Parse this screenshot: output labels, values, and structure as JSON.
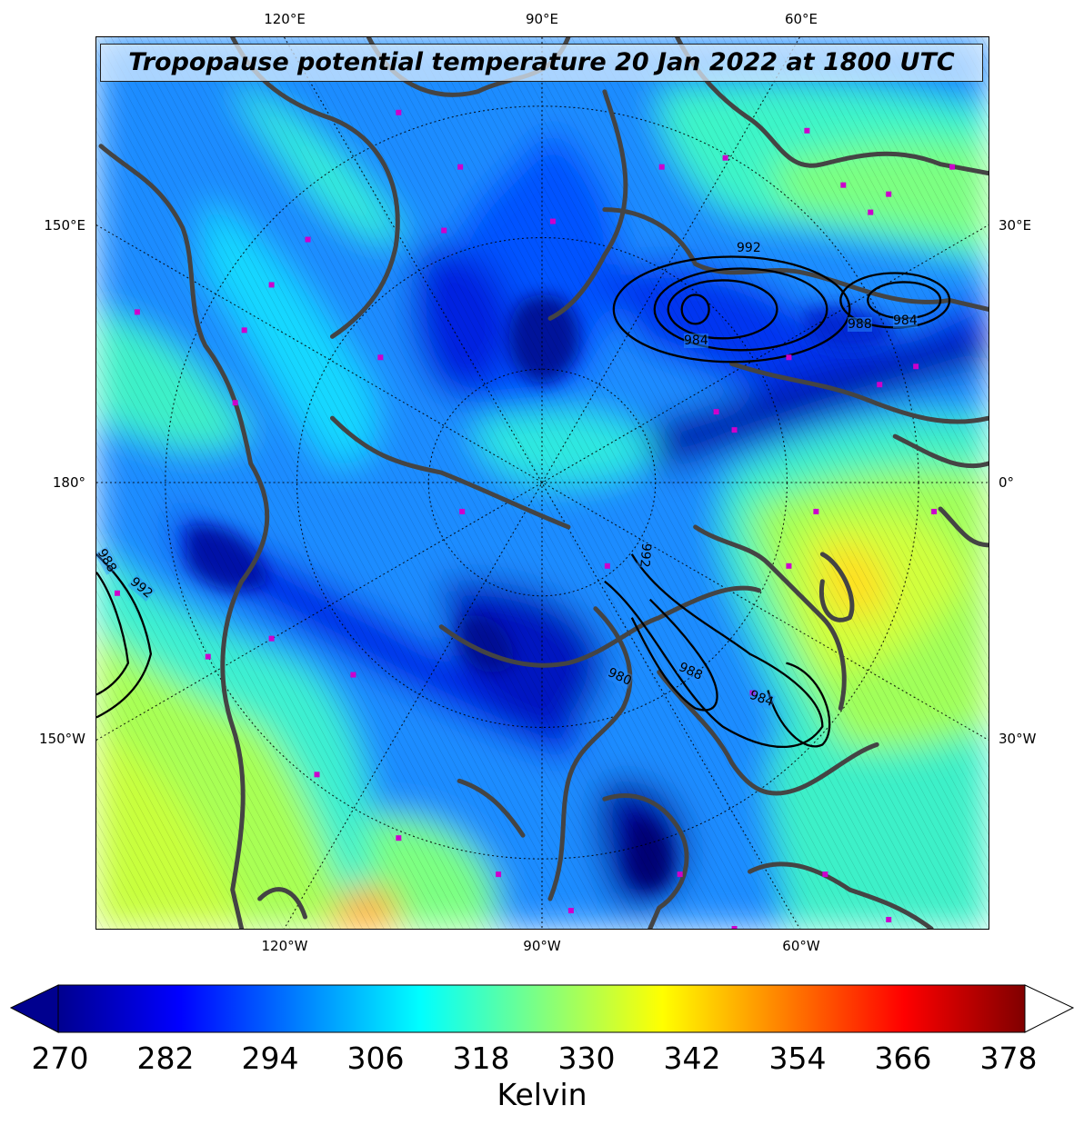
{
  "title": "Tropopause potential temperature 20 Jan 2022 at 1800 UTC",
  "longitude_labels": {
    "top": [
      "120°E",
      "90°E",
      "60°E"
    ],
    "bottom": [
      "120°W",
      "90°W",
      "60°W"
    ],
    "left": [
      "150°E",
      "180°",
      "150°W"
    ],
    "right": [
      "30°E",
      "0°",
      "30°W"
    ]
  },
  "pressure_contour_labels": [
    "992",
    "984",
    "988",
    "984",
    "988",
    "992",
    "992",
    "980",
    "988",
    "984"
  ],
  "colorbar": {
    "ticks": [
      "270",
      "282",
      "294",
      "306",
      "318",
      "330",
      "342",
      "354",
      "366",
      "378"
    ],
    "label": "Kelvin",
    "range": [
      270,
      380
    ],
    "extend": "both",
    "colormap": "jet",
    "stops": [
      "#00008f",
      "#0000ff",
      "#0080ff",
      "#00ffff",
      "#80ff80",
      "#ffff00",
      "#ff8000",
      "#ff0000",
      "#800000"
    ]
  },
  "colors": {
    "coastline": "#444444",
    "marker": "#cc00cc",
    "pressure_contour": "#000000"
  }
}
